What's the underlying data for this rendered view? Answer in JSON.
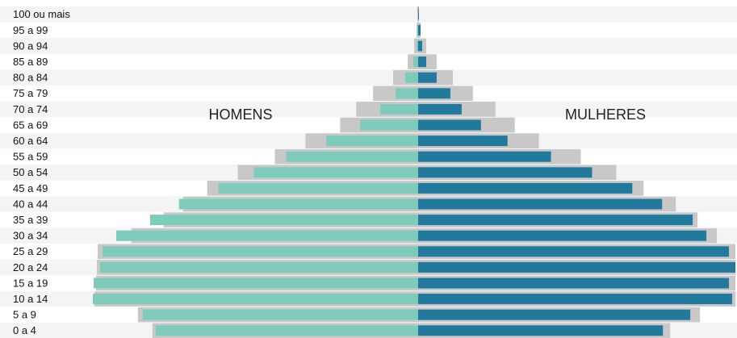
{
  "chart_data": {
    "type": "pyramid",
    "categories": [
      "100 ou mais",
      "95 a 99",
      "90 a 94",
      "85 a 89",
      "80 a 84",
      "75 a 79",
      "70 a 74",
      "65 a 69",
      "60 a 64",
      "55 a 59",
      "50 a 54",
      "45 a 49",
      "40 a 44",
      "35 a 39",
      "30 a 34",
      "25 a 29",
      "20 a 24",
      "15 a 19",
      "10 a 14",
      "5 a 9",
      "0 a 4"
    ],
    "series": [
      {
        "name": "HOMENS",
        "color": "#7ecbbb",
        "values": [
          0,
          1,
          2,
          6,
          16,
          28,
          47,
          72,
          114,
          164,
          204,
          248,
          297,
          333,
          375,
          392,
          395,
          403,
          404,
          342,
          326
        ]
      },
      {
        "name": "MULHERES",
        "color": "#21799c",
        "values": [
          1,
          3,
          5,
          10,
          23,
          40,
          54,
          78,
          111,
          165,
          216,
          266,
          303,
          341,
          358,
          386,
          394,
          386,
          390,
          338,
          304
        ]
      }
    ],
    "reference_series": [
      {
        "color": "#c8c8c8",
        "values": [
          1,
          2,
          5,
          13,
          31,
          56,
          77,
          97,
          140,
          178,
          224,
          262,
          292,
          316,
          356,
          398,
          399,
          400,
          402,
          348,
          330
        ]
      },
      {
        "color": "#c8c8c8",
        "values": [
          1,
          3,
          10,
          23,
          43,
          68,
          96,
          120,
          150,
          202,
          246,
          280,
          320,
          347,
          371,
          394,
          394,
          394,
          394,
          350,
          313
        ]
      }
    ],
    "xlim": [
      0,
      395
    ]
  }
}
